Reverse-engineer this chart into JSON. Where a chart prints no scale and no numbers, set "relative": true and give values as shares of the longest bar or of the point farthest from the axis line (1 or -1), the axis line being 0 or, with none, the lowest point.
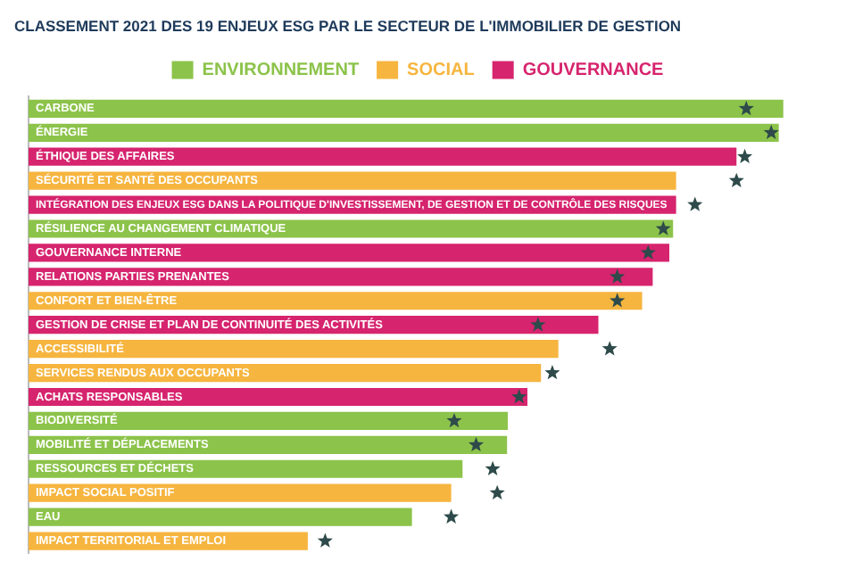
{
  "chart_data": {
    "type": "bar",
    "orientation": "horizontal",
    "relative": true,
    "title": "CLASSEMENT 2021 DES 19 ENJEUX ESG PAR LE SECTEUR DE L'IMMOBILIER DE GESTION",
    "categories": [
      "CARBONE",
      "ÉNERGIE",
      "ÉTHIQUE DES AFFAIRES",
      "SÉCURITÉ ET SANTÉ DES OCCUPANTS",
      "INTÉGRATION DES ENJEUX ESG DANS LA POLITIQUE D'INVESTISSEMENT, DE GESTION ET DE CONTRÔLE DES RISQUES",
      "RÉSILIENCE AU CHANGEMENT CLIMATIQUE",
      "GOUVERNANCE INTERNE",
      "RELATIONS PARTIES PRENANTES",
      "CONFORT ET BIEN-ÊTRE",
      "GESTION DE CRISE ET PLAN DE CONTINUITÉ DES ACTIVITÉS",
      "ACCESSIBILITÉ",
      "SERVICES RENDUS AUX OCCUPANTS",
      "ACHATS RESPONSABLES",
      "BIODIVERSITÉ",
      "MOBILITÉ ET DÉPLACEMENTS",
      "RESSOURCES ET DÉCHETS",
      "IMPACT SOCIAL POSITIF",
      "EAU",
      "IMPACT TERRITORIAL ET EMPLOI"
    ],
    "series": [
      {
        "name": "ENVIRONNEMENT",
        "color": "#8cc34a",
        "values": [
          1.0,
          0.994,
          null,
          null,
          null,
          0.854,
          null,
          null,
          null,
          null,
          null,
          null,
          null,
          0.635,
          0.634,
          0.575,
          null,
          0.508,
          null
        ]
      },
      {
        "name": "SOCIAL",
        "color": "#f6b53f",
        "values": [
          null,
          null,
          null,
          0.858,
          null,
          null,
          null,
          null,
          0.813,
          null,
          0.702,
          0.679,
          null,
          null,
          null,
          null,
          0.56,
          null,
          0.37
        ]
      },
      {
        "name": "GOUVERNANCE",
        "color": "#d6246e",
        "values": [
          null,
          null,
          0.938,
          null,
          0.858,
          null,
          0.849,
          0.827,
          null,
          0.755,
          null,
          null,
          0.661,
          null,
          null,
          null,
          null,
          null,
          null
        ]
      },
      {
        "type": "scatter",
        "marker": "star",
        "color": "#2e4a4a",
        "values": [
          0.951,
          0.984,
          0.949,
          0.938,
          0.883,
          0.841,
          0.821,
          0.78,
          0.78,
          0.675,
          0.77,
          0.694,
          0.65,
          0.564,
          0.593,
          0.615,
          0.621,
          0.56,
          0.393
        ]
      }
    ],
    "legend": "top"
  }
}
